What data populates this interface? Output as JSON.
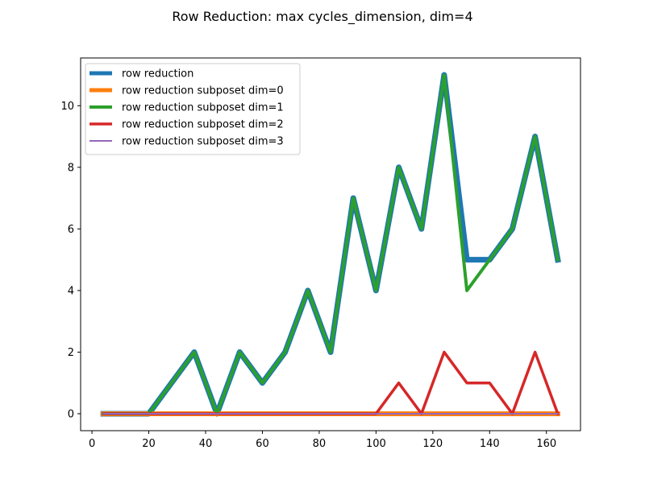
{
  "chart_data": {
    "type": "line",
    "title": "Row Reduction: max cycles_dimension, dim=4",
    "xlabel": "",
    "ylabel": "",
    "xlim": [
      -4,
      172
    ],
    "ylim": [
      -0.55,
      11.55
    ],
    "xticks": [
      0,
      20,
      40,
      60,
      80,
      100,
      120,
      140,
      160
    ],
    "yticks": [
      0,
      2,
      4,
      6,
      8,
      10
    ],
    "grid": false,
    "legend_position": "top-left",
    "x": [
      4,
      12,
      20,
      28,
      36,
      44,
      52,
      60,
      68,
      76,
      84,
      92,
      100,
      108,
      116,
      124,
      132,
      140,
      148,
      156,
      164
    ],
    "series": [
      {
        "name": "row reduction",
        "color": "#1f77b4",
        "width": 7,
        "values": [
          0,
          0,
          0,
          1,
          2,
          0,
          2,
          1,
          2,
          4,
          2,
          7,
          4,
          8,
          6,
          11,
          5,
          5,
          6,
          9,
          5
        ]
      },
      {
        "name": "row reduction subposet dim=0",
        "color": "#ff7f0e",
        "width": 6,
        "values": [
          0,
          0,
          0,
          0,
          0,
          0,
          0,
          0,
          0,
          0,
          0,
          0,
          0,
          0,
          0,
          0,
          0,
          0,
          0,
          0,
          0
        ]
      },
      {
        "name": "row reduction subposet dim=1",
        "color": "#2ca02c",
        "width": 4,
        "values": [
          0,
          0,
          0,
          1,
          2,
          0,
          2,
          1,
          2,
          4,
          2,
          7,
          4,
          8,
          6,
          11,
          4,
          5,
          6,
          9,
          5
        ]
      },
      {
        "name": "row reduction subposet dim=2",
        "color": "#d62728",
        "width": 3.5,
        "values": [
          0,
          0,
          0,
          0,
          0,
          0,
          0,
          0,
          0,
          0,
          0,
          0,
          0,
          1,
          0,
          2,
          1,
          1,
          0,
          2,
          0
        ]
      },
      {
        "name": "row reduction subposet dim=3",
        "color": "#9467bd",
        "width": 2,
        "values": [
          0,
          0,
          0,
          0,
          0,
          0,
          0,
          0,
          0,
          0,
          0,
          0,
          0,
          0,
          0,
          0,
          0,
          0,
          0,
          0,
          0
        ]
      }
    ]
  }
}
